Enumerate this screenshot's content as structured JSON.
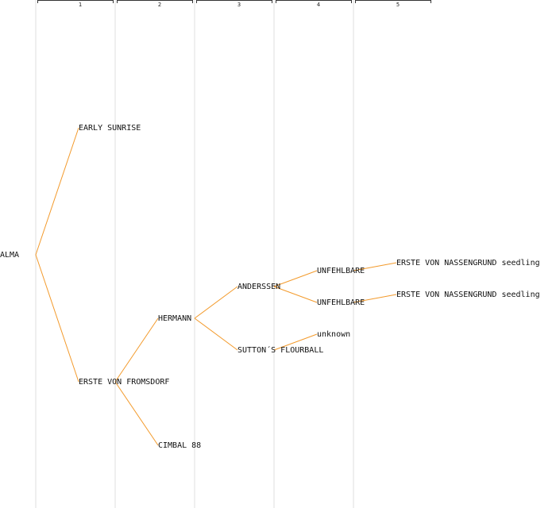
{
  "generations": [
    "1",
    "2",
    "3",
    "4",
    "5"
  ],
  "nodes": {
    "root": "ALMA",
    "g1_top": "EARLY SUNRISE",
    "g1_bottom": "ERSTE VON FROMSDORF",
    "g2_top": "HERMANN",
    "g2_bottom": "CIMBAL 88",
    "g3_top": "ANDERSSEN",
    "g3_bottom": "SUTTON´S FLOURBALL",
    "g4_a": "UNFEHLBARE",
    "g4_b": "UNFEHLBARE",
    "g4_c": "unknown",
    "g5_a": "ERSTE VON NASSENGRUND seedling",
    "g5_b": "ERSTE VON NASSENGRUND seedling"
  },
  "colors": {
    "edge": "#f39a2b",
    "gridline": "#efefef",
    "text": "#111111"
  }
}
